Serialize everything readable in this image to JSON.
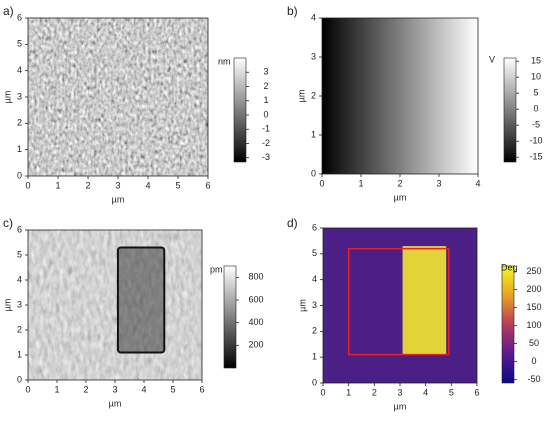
{
  "chart_data": [
    {
      "type": "heatmap",
      "label": "a)",
      "xlabel": "µm",
      "ylabel": "µm",
      "xlim": [
        0,
        6
      ],
      "ylim": [
        0,
        6
      ],
      "xticks": [
        0,
        1,
        2,
        3,
        4,
        5,
        6
      ],
      "yticks": [
        0,
        1,
        2,
        3,
        4,
        5,
        6
      ],
      "colorbar_label": "nm",
      "clim": [
        -3.3,
        4
      ],
      "cticks": [
        3,
        2,
        1,
        0,
        -1,
        -2,
        -3
      ],
      "colormap": [
        "#000000",
        "#ffffff"
      ],
      "texture": "grain"
    },
    {
      "type": "heatmap",
      "label": "b)",
      "xlabel": "µm",
      "ylabel": "µm",
      "xlim": [
        0,
        4
      ],
      "ylim": [
        0,
        4
      ],
      "xticks": [
        0,
        1,
        2,
        3,
        4
      ],
      "yticks": [
        0,
        1,
        2,
        3,
        4
      ],
      "colorbar_label": "V",
      "clim": [
        -16.5,
        16
      ],
      "cticks": [
        15,
        10,
        5,
        0,
        -5,
        -10,
        -15
      ],
      "colormap": [
        "#000000",
        "#ffffff"
      ],
      "texture": "gradient"
    },
    {
      "type": "heatmap",
      "label": "c)",
      "xlabel": "µm",
      "ylabel": "µm",
      "xlim": [
        0,
        6
      ],
      "ylim": [
        0,
        6
      ],
      "xticks": [
        0,
        1,
        2,
        3,
        4,
        5,
        6
      ],
      "yticks": [
        0,
        1,
        2,
        3,
        4,
        5,
        6
      ],
      "colorbar_label": "pm",
      "clim": [
        0,
        900
      ],
      "cticks": [
        800,
        600,
        400,
        200
      ],
      "colormap": [
        "#000000",
        "#ffffff"
      ],
      "texture": "weave"
    },
    {
      "type": "heatmap",
      "label": "d)",
      "xlabel": "µm",
      "ylabel": "µm",
      "xlim": [
        0,
        6
      ],
      "ylim": [
        0,
        6
      ],
      "xticks": [
        0,
        1,
        2,
        3,
        4,
        5,
        6
      ],
      "yticks": [
        0,
        1,
        2,
        3,
        4,
        5,
        6
      ],
      "colorbar_label": "Deg",
      "clim": [
        -60,
        265
      ],
      "cticks": [
        250,
        200,
        150,
        100,
        50,
        0,
        -50
      ],
      "colormap": [
        "#0d0887",
        "#5b1a8f",
        "#b73b5d",
        "#e8a323",
        "#f0f921"
      ],
      "texture": "phase"
    }
  ]
}
